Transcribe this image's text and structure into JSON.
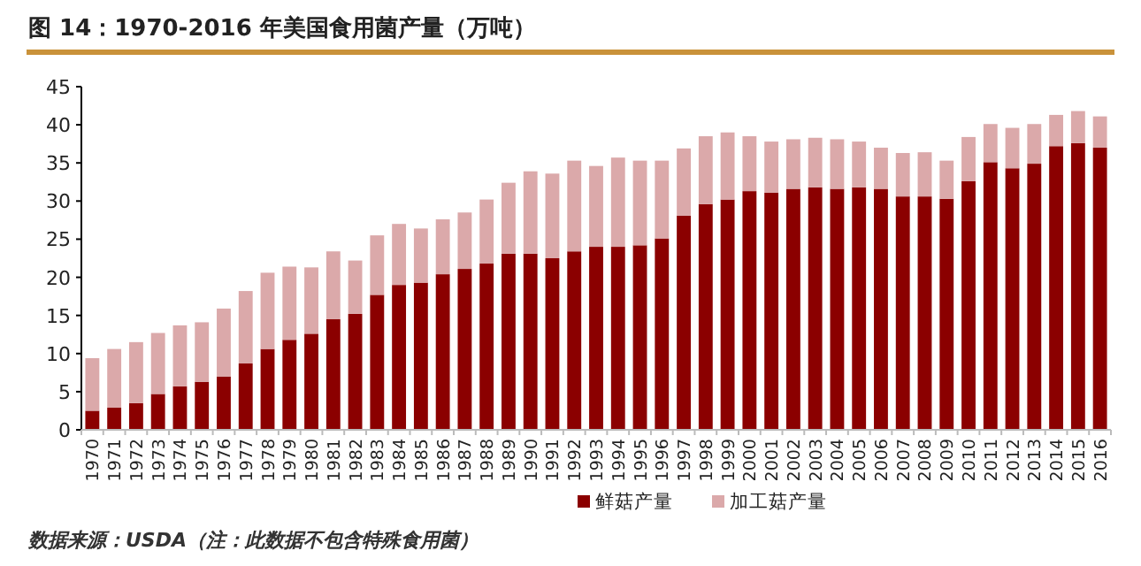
{
  "chart_data": {
    "type": "bar",
    "title": "图 14：1970-2016 年美国食用菌产量（万吨）",
    "annotations": [
      "数据来源：USDA（注：此数据不包含特殊食用菌）"
    ],
    "categories": [
      "1970",
      "1971",
      "1972",
      "1973",
      "1974",
      "1975",
      "1976",
      "1977",
      "1978",
      "1979",
      "1980",
      "1981",
      "1982",
      "1983",
      "1984",
      "1985",
      "1986",
      "1987",
      "1988",
      "1989",
      "1990",
      "1991",
      "1992",
      "1993",
      "1994",
      "1995",
      "1996",
      "1997",
      "1998",
      "1999",
      "2000",
      "2001",
      "2002",
      "2003",
      "2004",
      "2005",
      "2006",
      "2007",
      "2008",
      "2009",
      "2010",
      "2011",
      "2012",
      "2013",
      "2014",
      "2015",
      "2016"
    ],
    "series": [
      {
        "name": "鲜菇产量",
        "color": "#8b0000",
        "values": [
          2.5,
          2.9,
          3.5,
          4.7,
          5.7,
          6.3,
          7.0,
          8.7,
          10.6,
          11.8,
          12.6,
          14.5,
          15.2,
          17.7,
          19.0,
          19.3,
          20.4,
          21.1,
          21.8,
          23.1,
          23.1,
          22.5,
          23.4,
          24.0,
          24.0,
          24.2,
          25.1,
          28.1,
          29.6,
          30.2,
          31.3,
          31.1,
          31.6,
          31.8,
          31.6,
          31.8,
          31.6,
          30.6,
          30.6,
          30.3,
          32.6,
          35.1,
          34.3,
          34.9,
          37.2,
          37.6,
          37.0
        ]
      },
      {
        "name": "加工菇产量",
        "color": "#dba9aa",
        "values": [
          6.9,
          7.7,
          8.0,
          8.0,
          8.0,
          7.8,
          8.9,
          9.5,
          10.0,
          9.6,
          8.7,
          8.9,
          7.0,
          7.8,
          8.0,
          7.1,
          7.2,
          7.4,
          8.4,
          9.3,
          10.8,
          11.1,
          11.9,
          10.6,
          11.7,
          11.1,
          10.2,
          8.8,
          8.9,
          8.8,
          7.2,
          6.7,
          6.5,
          6.5,
          6.5,
          6.0,
          5.4,
          5.7,
          5.8,
          5.0,
          5.8,
          5.0,
          5.3,
          5.2,
          4.1,
          4.2,
          4.1
        ]
      }
    ],
    "stacked": true,
    "ylim": [
      0,
      45
    ],
    "yticks": [
      0,
      5,
      10,
      15,
      20,
      25,
      30,
      35,
      40,
      45
    ],
    "legend": "bottom"
  }
}
